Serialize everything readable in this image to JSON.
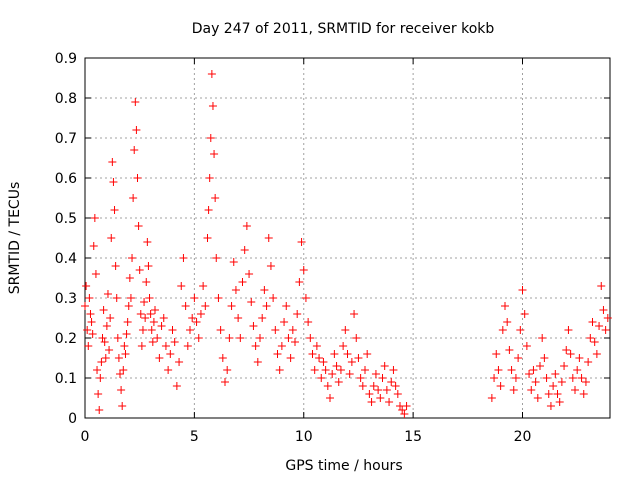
{
  "chart_data": {
    "type": "scatter",
    "title": "Day 247 of 2011, SRMTID for receiver kokb",
    "xlabel": "GPS time / hours",
    "ylabel": "SRMTID / TECUs",
    "xlim": [
      0,
      24
    ],
    "ylim": [
      0,
      0.9
    ],
    "xticks": [
      0,
      5,
      10,
      15,
      20
    ],
    "yticks": [
      0,
      0.1,
      0.2,
      0.3,
      0.4,
      0.5,
      0.6,
      0.7,
      0.8,
      0.9
    ],
    "grid": true,
    "marker": "+",
    "series": [
      {
        "name": "SRMTID",
        "color": "#ff0000",
        "x": [
          0.0,
          0.05,
          0.1,
          0.15,
          0.2,
          0.25,
          0.3,
          0.35,
          0.4,
          0.45,
          0.5,
          0.55,
          0.6,
          0.65,
          0.7,
          0.75,
          0.8,
          0.85,
          0.9,
          0.95,
          1.0,
          1.05,
          1.1,
          1.15,
          1.2,
          1.25,
          1.3,
          1.35,
          1.4,
          1.45,
          1.5,
          1.55,
          1.6,
          1.65,
          1.7,
          1.75,
          1.8,
          1.85,
          1.9,
          1.95,
          2.0,
          2.05,
          2.1,
          2.15,
          2.2,
          2.25,
          2.3,
          2.35,
          2.4,
          2.45,
          2.5,
          2.55,
          2.6,
          2.65,
          2.7,
          2.75,
          2.8,
          2.85,
          2.9,
          2.95,
          3.0,
          3.05,
          3.1,
          3.15,
          3.2,
          3.3,
          3.4,
          3.5,
          3.6,
          3.7,
          3.8,
          3.9,
          4.0,
          4.1,
          4.2,
          4.3,
          4.4,
          4.5,
          4.6,
          4.7,
          4.8,
          4.9,
          5.0,
          5.1,
          5.2,
          5.3,
          5.4,
          5.5,
          5.6,
          5.65,
          5.7,
          5.75,
          5.8,
          5.85,
          5.9,
          5.95,
          6.0,
          6.1,
          6.2,
          6.3,
          6.4,
          6.5,
          6.6,
          6.7,
          6.8,
          6.9,
          7.0,
          7.1,
          7.2,
          7.3,
          7.4,
          7.5,
          7.6,
          7.7,
          7.8,
          7.9,
          8.0,
          8.1,
          8.2,
          8.3,
          8.4,
          8.5,
          8.6,
          8.7,
          8.8,
          8.9,
          9.0,
          9.1,
          9.2,
          9.3,
          9.4,
          9.5,
          9.6,
          9.7,
          9.8,
          9.9,
          10.0,
          10.1,
          10.2,
          10.3,
          10.4,
          10.5,
          10.6,
          10.7,
          10.8,
          10.9,
          11.0,
          11.1,
          11.2,
          11.3,
          11.4,
          11.5,
          11.6,
          11.7,
          11.8,
          11.9,
          12.0,
          12.1,
          12.2,
          12.3,
          12.4,
          12.5,
          12.6,
          12.7,
          12.8,
          12.9,
          13.0,
          13.1,
          13.2,
          13.3,
          13.4,
          13.5,
          13.6,
          13.7,
          13.8,
          13.9,
          14.0,
          14.1,
          14.2,
          14.3,
          14.4,
          14.5,
          14.6,
          14.7,
          18.6,
          18.7,
          18.8,
          18.9,
          19.0,
          19.1,
          19.2,
          19.3,
          19.4,
          19.5,
          19.6,
          19.7,
          19.8,
          19.9,
          20.0,
          20.1,
          20.2,
          20.3,
          20.4,
          20.5,
          20.6,
          20.7,
          20.8,
          20.9,
          21.0,
          21.1,
          21.2,
          21.3,
          21.4,
          21.5,
          21.6,
          21.7,
          21.8,
          21.9,
          22.0,
          22.1,
          22.2,
          22.3,
          22.4,
          22.5,
          22.6,
          22.7,
          22.8,
          22.9,
          23.0,
          23.1,
          23.2,
          23.3,
          23.4,
          23.5,
          23.6,
          23.7,
          23.8,
          23.9
        ],
        "y": [
          0.28,
          0.33,
          0.22,
          0.18,
          0.3,
          0.26,
          0.24,
          0.21,
          0.43,
          0.5,
          0.36,
          0.12,
          0.06,
          0.02,
          0.1,
          0.14,
          0.2,
          0.27,
          0.19,
          0.15,
          0.23,
          0.31,
          0.17,
          0.25,
          0.45,
          0.64,
          0.59,
          0.52,
          0.38,
          0.3,
          0.2,
          0.15,
          0.11,
          0.07,
          0.03,
          0.12,
          0.18,
          0.16,
          0.21,
          0.24,
          0.28,
          0.35,
          0.3,
          0.4,
          0.55,
          0.67,
          0.79,
          0.72,
          0.6,
          0.48,
          0.37,
          0.26,
          0.18,
          0.22,
          0.29,
          0.25,
          0.34,
          0.44,
          0.38,
          0.3,
          0.26,
          0.22,
          0.19,
          0.24,
          0.27,
          0.2,
          0.15,
          0.23,
          0.25,
          0.18,
          0.12,
          0.16,
          0.22,
          0.19,
          0.08,
          0.14,
          0.33,
          0.4,
          0.28,
          0.18,
          0.22,
          0.25,
          0.3,
          0.24,
          0.2,
          0.26,
          0.33,
          0.28,
          0.45,
          0.52,
          0.6,
          0.7,
          0.86,
          0.78,
          0.66,
          0.55,
          0.4,
          0.3,
          0.22,
          0.15,
          0.09,
          0.12,
          0.2,
          0.28,
          0.39,
          0.32,
          0.25,
          0.2,
          0.34,
          0.42,
          0.48,
          0.36,
          0.29,
          0.23,
          0.18,
          0.14,
          0.2,
          0.25,
          0.32,
          0.28,
          0.45,
          0.38,
          0.3,
          0.22,
          0.16,
          0.12,
          0.18,
          0.24,
          0.28,
          0.2,
          0.15,
          0.22,
          0.19,
          0.26,
          0.34,
          0.44,
          0.37,
          0.3,
          0.24,
          0.2,
          0.16,
          0.12,
          0.18,
          0.15,
          0.1,
          0.14,
          0.12,
          0.08,
          0.05,
          0.11,
          0.16,
          0.13,
          0.09,
          0.12,
          0.18,
          0.22,
          0.16,
          0.11,
          0.14,
          0.26,
          0.2,
          0.15,
          0.1,
          0.08,
          0.12,
          0.16,
          0.06,
          0.04,
          0.08,
          0.11,
          0.07,
          0.05,
          0.1,
          0.13,
          0.07,
          0.04,
          0.09,
          0.12,
          0.08,
          0.06,
          0.03,
          0.02,
          0.01,
          0.03,
          0.05,
          0.1,
          0.16,
          0.12,
          0.08,
          0.22,
          0.28,
          0.24,
          0.17,
          0.12,
          0.07,
          0.1,
          0.15,
          0.22,
          0.32,
          0.26,
          0.18,
          0.11,
          0.07,
          0.12,
          0.09,
          0.05,
          0.13,
          0.2,
          0.15,
          0.1,
          0.06,
          0.03,
          0.08,
          0.11,
          0.06,
          0.04,
          0.09,
          0.13,
          0.17,
          0.22,
          0.16,
          0.1,
          0.07,
          0.12,
          0.15,
          0.1,
          0.06,
          0.09,
          0.14,
          0.2,
          0.24,
          0.19,
          0.16,
          0.23,
          0.33,
          0.27,
          0.22,
          0.25
        ]
      }
    ]
  }
}
